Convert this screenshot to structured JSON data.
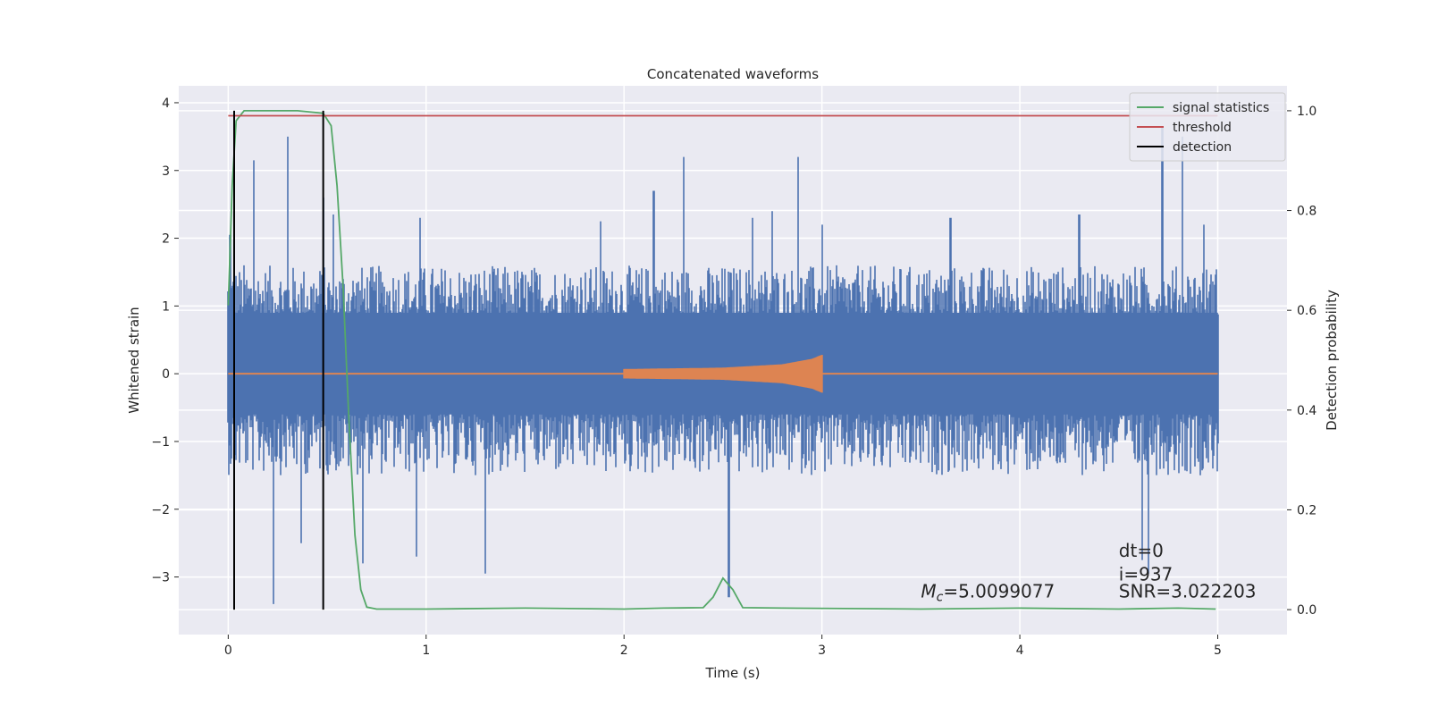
{
  "chart_data": {
    "type": "line",
    "title": "Concatenated waveforms",
    "xlabel": "Time (s)",
    "ylabel": "Whitened strain",
    "ylabel_right": "Detection probability",
    "xlim": [
      -0.25,
      5.35
    ],
    "ylim": [
      -3.85,
      4.25
    ],
    "ylim_right": [
      -0.05,
      1.05
    ],
    "x_ticks": [
      0,
      1,
      2,
      3,
      4,
      5
    ],
    "x_tick_labels": [
      "0",
      "1",
      "2",
      "3",
      "4",
      "5"
    ],
    "y_ticks": [
      4,
      3,
      2,
      1,
      0,
      -1,
      -2,
      -3
    ],
    "y_tick_labels": [
      "4",
      "3",
      "2",
      "1",
      "0",
      "−1",
      "−2",
      "−3"
    ],
    "y2_ticks": [
      1.0,
      0.8,
      0.6,
      0.4,
      0.2,
      0.0
    ],
    "y2_tick_labels": [
      "1.0",
      "0.8",
      "0.6",
      "0.4",
      "0.2",
      "0.0"
    ],
    "grid": true,
    "legend_position": "top-right",
    "series": [
      {
        "name": "",
        "axis": "left",
        "color": "#4c72b0",
        "kind": "noise",
        "x_range": [
          0,
          5
        ],
        "typical_range": [
          -1.5,
          1.6
        ],
        "peaks": [
          [
            0.01,
            2.05
          ],
          [
            0.08,
            1.6
          ],
          [
            0.13,
            3.15
          ],
          [
            0.23,
            -3.4
          ],
          [
            0.3,
            3.5
          ],
          [
            0.37,
            -2.5
          ],
          [
            0.48,
            2.6
          ],
          [
            0.53,
            2.35
          ],
          [
            0.68,
            -2.8
          ],
          [
            0.95,
            -2.7
          ],
          [
            0.97,
            2.3
          ],
          [
            1.3,
            -2.95
          ],
          [
            1.88,
            2.25
          ],
          [
            2.15,
            2.7
          ],
          [
            2.3,
            3.2
          ],
          [
            2.53,
            -3.3
          ],
          [
            2.65,
            2.3
          ],
          [
            2.75,
            2.4
          ],
          [
            2.88,
            3.2
          ],
          [
            3.0,
            2.2
          ],
          [
            3.65,
            2.3
          ],
          [
            4.3,
            2.35
          ],
          [
            4.62,
            -2.75
          ],
          [
            4.65,
            -2.95
          ],
          [
            4.72,
            3.65
          ],
          [
            4.82,
            3.5
          ],
          [
            4.93,
            2.2
          ]
        ]
      },
      {
        "name": "",
        "axis": "left",
        "color": "#dd8452",
        "kind": "chirp",
        "x": [
          0,
          2,
          2.5,
          2.8,
          2.95,
          3.0,
          5
        ],
        "envelope": [
          0,
          0.07,
          0.09,
          0.14,
          0.22,
          0.28,
          0
        ],
        "chirp_range": [
          2.0,
          3.0
        ]
      },
      {
        "name": "signal statistics",
        "axis": "right",
        "color": "#55a868",
        "x": [
          0,
          0.02,
          0.04,
          0.08,
          0.2,
          0.35,
          0.48,
          0.52,
          0.55,
          0.58,
          0.61,
          0.64,
          0.67,
          0.7,
          0.75,
          1.0,
          1.5,
          2.0,
          2.2,
          2.4,
          2.45,
          2.5,
          2.55,
          2.6,
          2.8,
          3.5,
          4.0,
          4.5,
          4.8,
          4.99
        ],
        "values": [
          0.61,
          0.85,
          0.98,
          1.0,
          1.0,
          1.0,
          0.995,
          0.97,
          0.85,
          0.65,
          0.38,
          0.15,
          0.04,
          0.005,
          0.001,
          0.001,
          0.003,
          0.001,
          0.003,
          0.004,
          0.025,
          0.063,
          0.04,
          0.004,
          0.003,
          0.001,
          0.003,
          0.001,
          0.003,
          0.001
        ]
      },
      {
        "name": "threshold",
        "axis": "right",
        "color": "#c44e52",
        "x": [
          0,
          5
        ],
        "values": [
          0.99,
          0.99
        ]
      },
      {
        "name": "detection",
        "axis": "right",
        "color": "#000000",
        "kind": "vlines",
        "x": [
          0.03,
          0.48
        ],
        "range": [
          0.0,
          1.0
        ]
      }
    ],
    "annotations": [
      {
        "name": "mchirp-annotation",
        "prefix": "M",
        "subscript": "c",
        "text": "=5.0099077",
        "x": 3.5,
        "y": -3.3
      },
      {
        "name": "dt-annotation",
        "text": "dt=0",
        "x": 4.5,
        "y": -2.7
      },
      {
        "name": "i-annotation",
        "text": "i=937",
        "x": 4.5,
        "y": -3.05
      },
      {
        "name": "snr-annotation",
        "text": "SNR=3.022203",
        "x": 4.5,
        "y": -3.3
      }
    ]
  }
}
